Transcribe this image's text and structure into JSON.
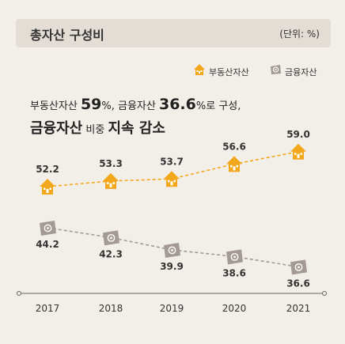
{
  "header": {
    "title": "총자산 구성비",
    "unit": "(단위: %)"
  },
  "legend": {
    "real_estate": "부동산자산",
    "financial": "금융자산"
  },
  "headline": {
    "line1_a": "부동산자산 ",
    "line1_b": "59",
    "line1_c": "%, 금융자산 ",
    "line1_d": "36.6",
    "line1_e": "%로 구성,",
    "line2_a": "금융자산",
    "line2_b": " 비중 ",
    "line2_c": "지속 감소"
  },
  "colors": {
    "real_estate": "#f3a81c",
    "financial": "#a39a93",
    "axis": "#6b625c"
  },
  "icons": {
    "real_estate": "house-icon",
    "financial": "money-bill-icon"
  },
  "chart_data": {
    "type": "line",
    "categories": [
      "2017",
      "2018",
      "2019",
      "2020",
      "2021"
    ],
    "series": [
      {
        "name": "부동산자산",
        "values": [
          52.2,
          53.3,
          53.7,
          56.6,
          59.0
        ],
        "labels": [
          "52.2",
          "53.3",
          "53.7",
          "56.6",
          "59.0"
        ]
      },
      {
        "name": "금융자산",
        "values": [
          44.2,
          42.3,
          39.9,
          38.6,
          36.6
        ],
        "labels": [
          "44.2",
          "42.3",
          "39.9",
          "38.6",
          "36.6"
        ]
      }
    ],
    "legend": "top-right",
    "grid": false
  }
}
